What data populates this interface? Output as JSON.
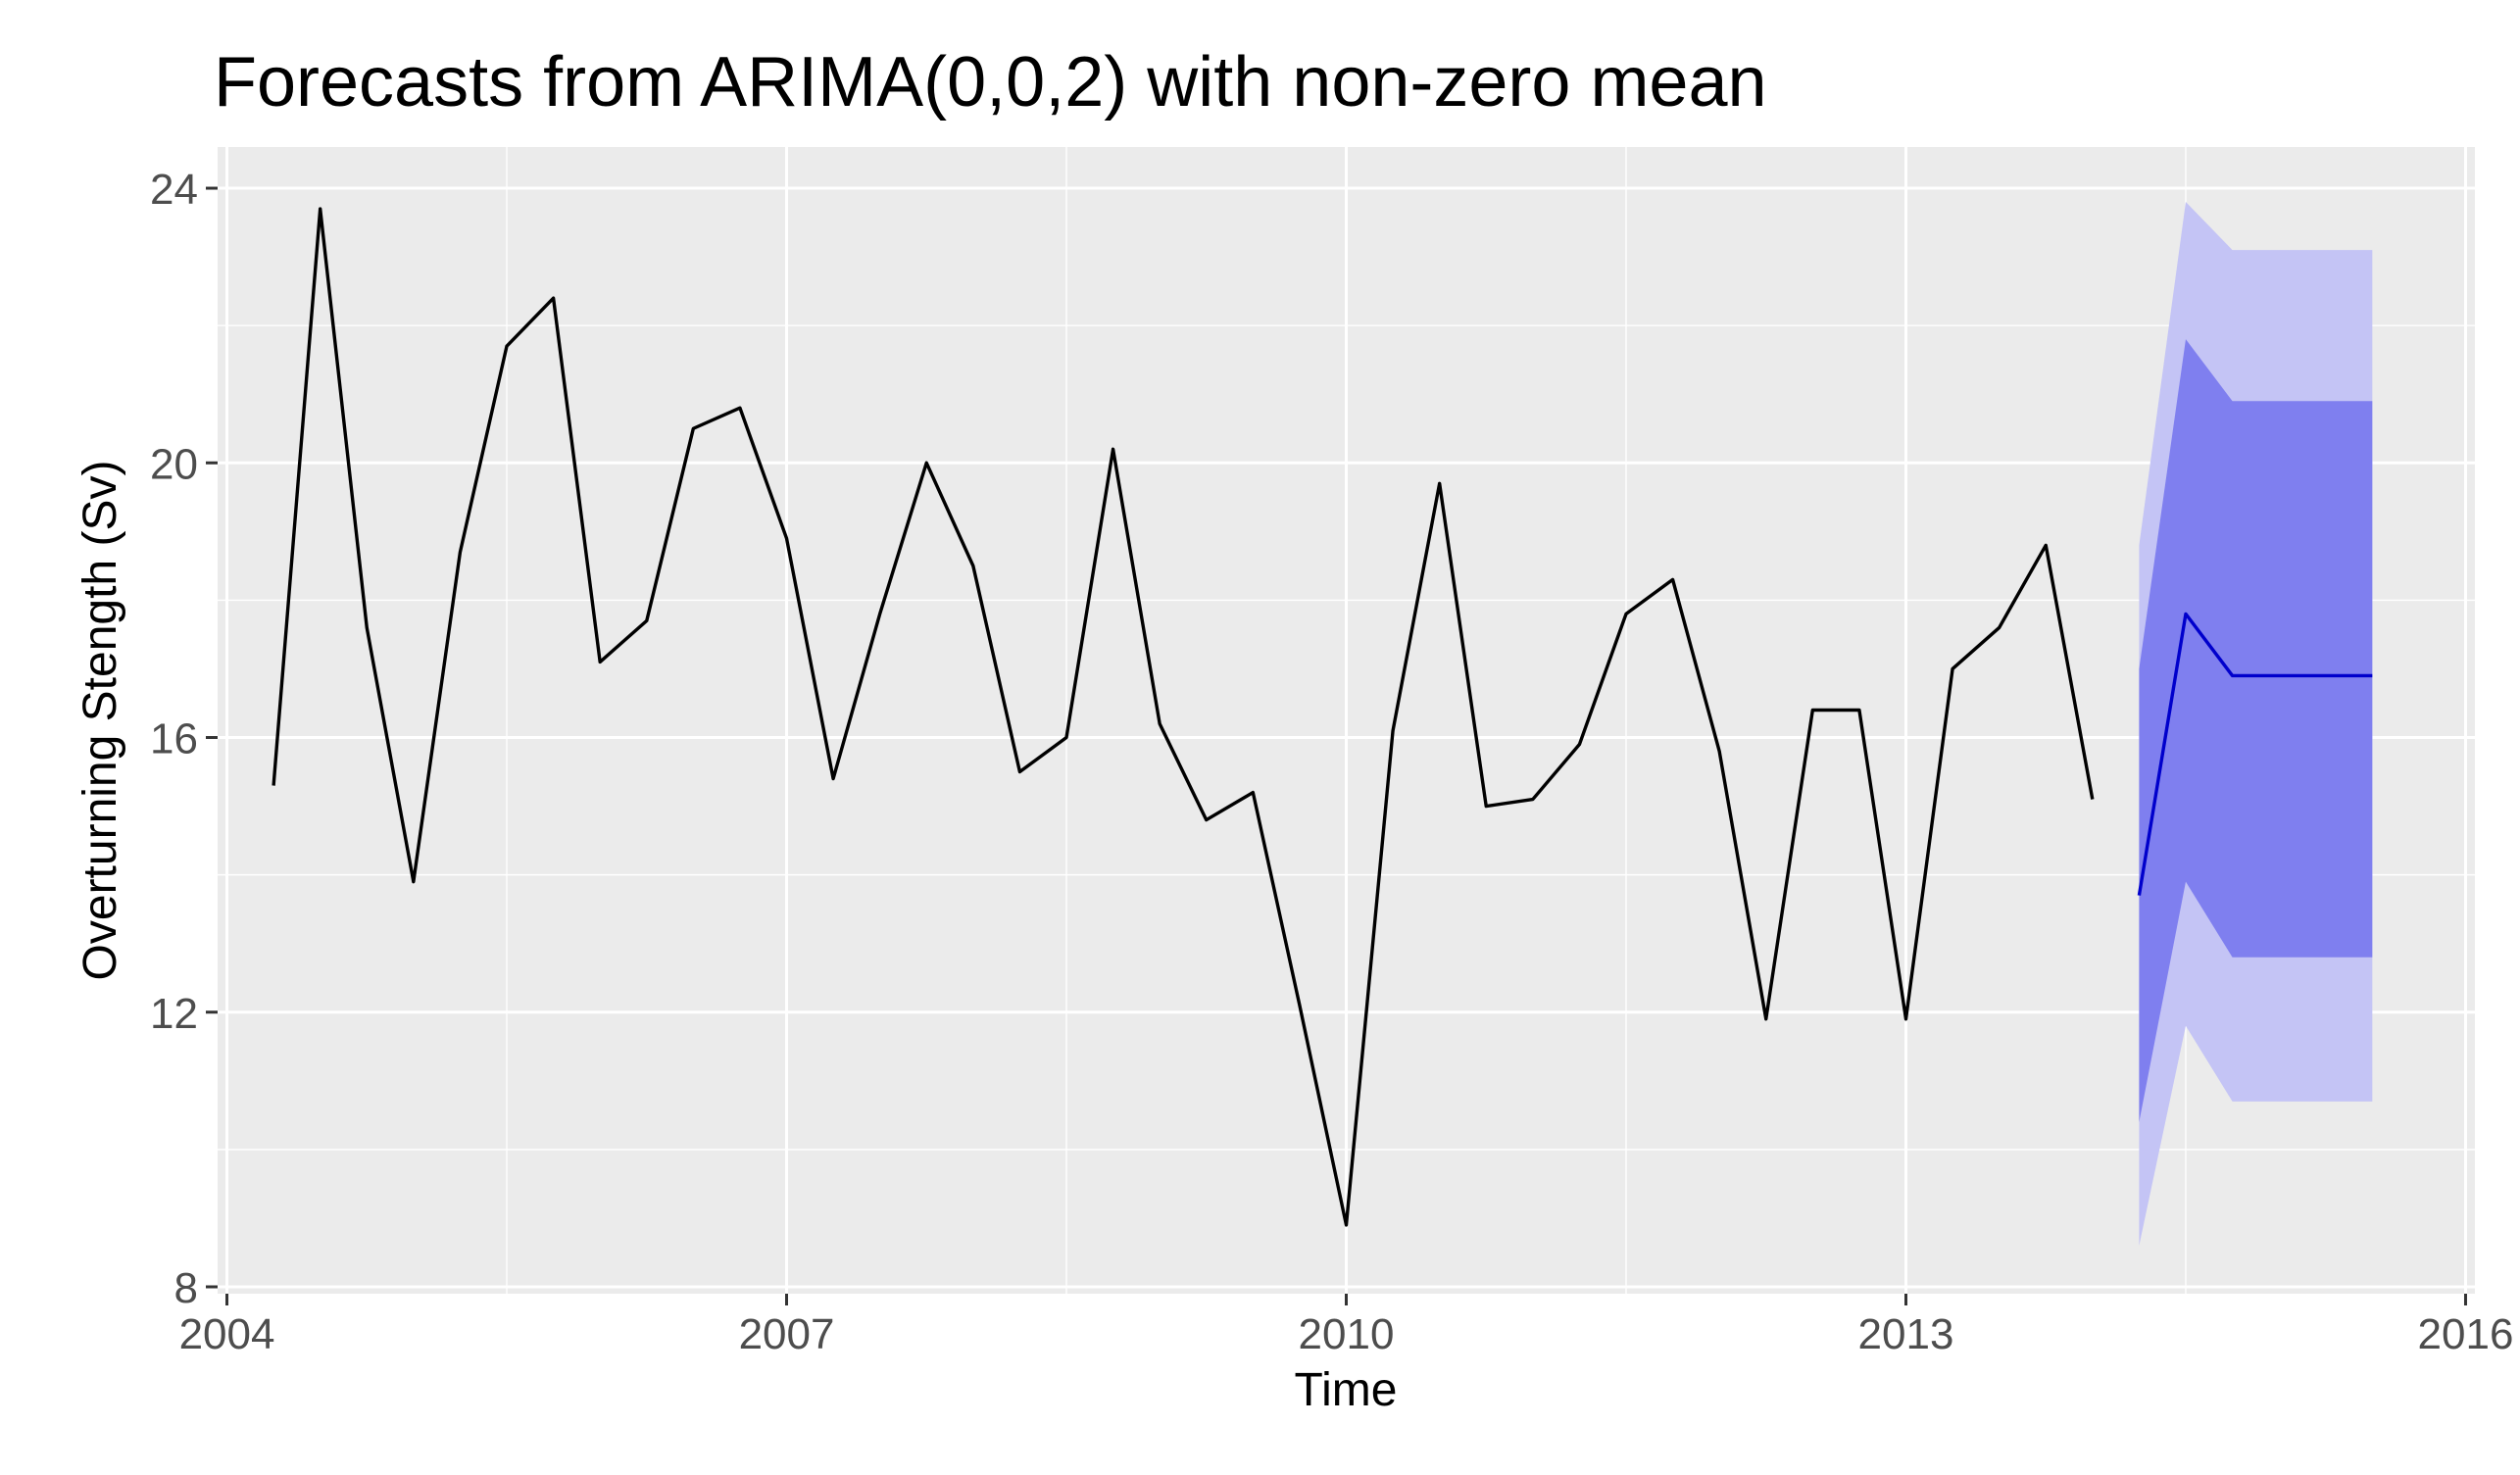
{
  "chart_data": {
    "type": "line",
    "title": "Forecasts from ARIMA(0,0,2) with non-zero mean",
    "xlabel": "Time",
    "ylabel": "Overturning Stength (Sv)",
    "xlim": [
      2003.95,
      2016.05
    ],
    "ylim": [
      7.9,
      24.6
    ],
    "x_ticks": [
      2004,
      2007,
      2010,
      2013,
      2016
    ],
    "x_tick_labels": [
      "2004",
      "2007",
      "2010",
      "2013",
      "2016"
    ],
    "y_ticks": [
      8,
      12,
      16,
      20,
      24
    ],
    "y_tick_labels": [
      "8",
      "12",
      "16",
      "20",
      "24"
    ],
    "grid": true,
    "series": [
      {
        "role": "observed",
        "color": "#000000",
        "x": [
          2004.25,
          2004.5,
          2004.75,
          2005.0,
          2005.25,
          2005.5,
          2005.75,
          2006.0,
          2006.25,
          2006.5,
          2006.75,
          2007.0,
          2007.25,
          2007.5,
          2007.75,
          2008.0,
          2008.25,
          2008.5,
          2008.75,
          2009.0,
          2009.25,
          2009.5,
          2009.75,
          2010.0,
          2010.25,
          2010.5,
          2010.75,
          2011.0,
          2011.25,
          2011.5,
          2011.75,
          2012.0,
          2012.25,
          2012.5,
          2012.75,
          2013.0,
          2013.25,
          2013.5,
          2013.75,
          2014.0
        ],
        "y": [
          15.3,
          23.7,
          17.6,
          13.9,
          18.7,
          21.7,
          22.4,
          17.1,
          17.7,
          20.5,
          20.8,
          18.9,
          15.4,
          17.8,
          20.0,
          18.5,
          15.5,
          16.0,
          20.2,
          16.2,
          14.8,
          15.2,
          12.1,
          8.9,
          16.1,
          19.7,
          15.0,
          15.1,
          15.9,
          17.8,
          18.3,
          15.8,
          11.9,
          16.4,
          16.4,
          11.9,
          17.0,
          17.6,
          18.8,
          15.1
        ]
      },
      {
        "role": "forecast",
        "color": "#0000cc",
        "x": [
          2014.25,
          2014.5,
          2014.75,
          2015.0,
          2015.25,
          2015.5
        ],
        "y": [
          13.7,
          17.8,
          16.9,
          16.9,
          16.9,
          16.9
        ]
      }
    ],
    "intervals": [
      {
        "level": "95%",
        "color": "#c4c4f5",
        "x": [
          2014.25,
          2014.5,
          2014.75,
          2015.0,
          2015.25,
          2015.5
        ],
        "lower": [
          8.6,
          11.8,
          10.7,
          10.7,
          10.7,
          10.7
        ],
        "upper": [
          18.8,
          23.8,
          23.1,
          23.1,
          23.1,
          23.1
        ]
      },
      {
        "level": "80%",
        "color": "#7f7fef",
        "x": [
          2014.25,
          2014.5,
          2014.75,
          2015.0,
          2015.25,
          2015.5
        ],
        "lower": [
          10.4,
          13.9,
          12.8,
          12.8,
          12.8,
          12.8
        ],
        "upper": [
          17.0,
          21.8,
          20.9,
          20.9,
          20.9,
          20.9
        ]
      }
    ],
    "panel_color": "#ebebeb",
    "grid_color": "#ffffff"
  }
}
